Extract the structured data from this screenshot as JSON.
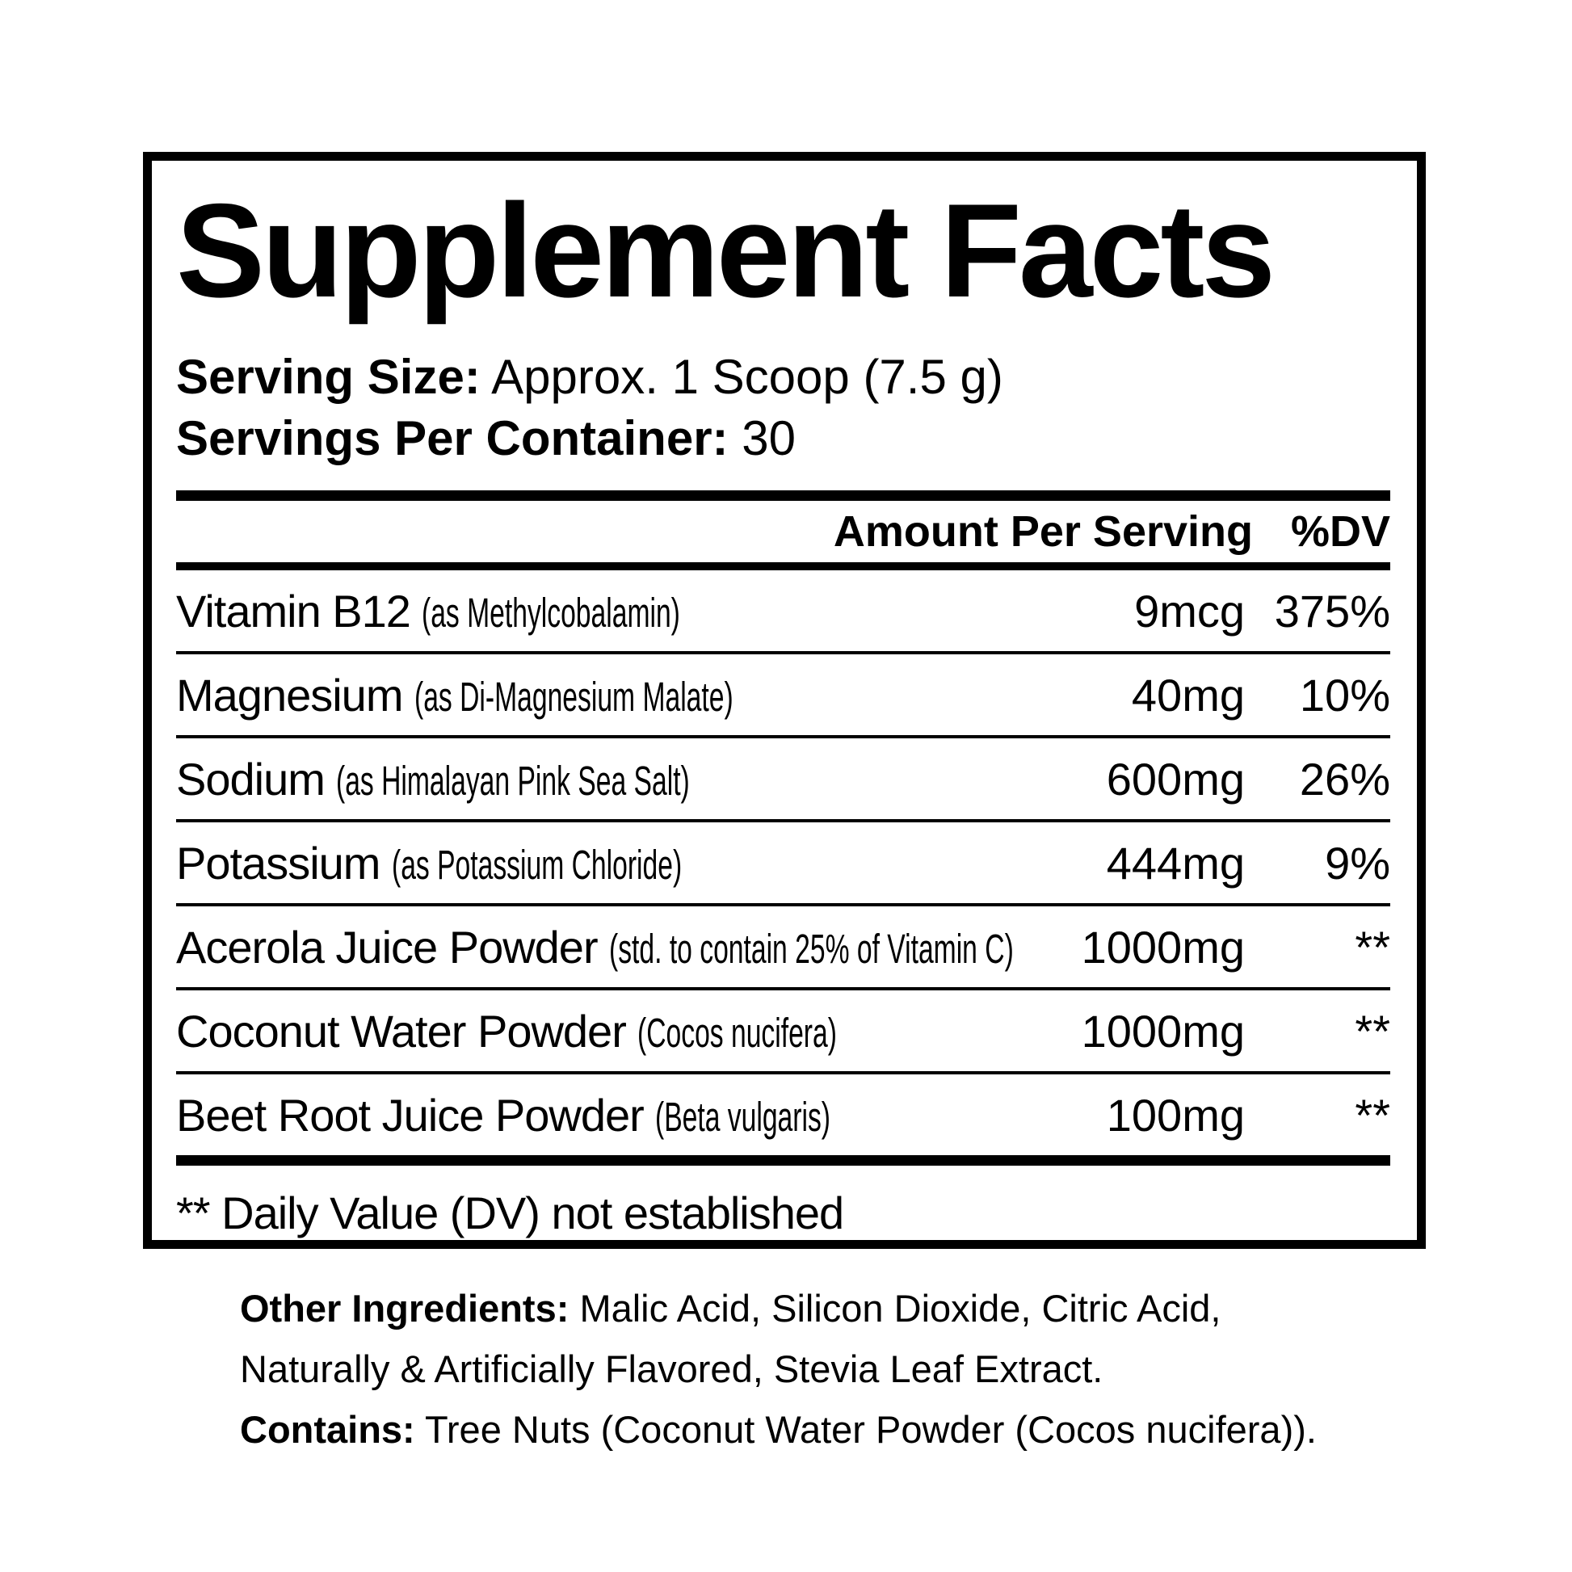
{
  "label": {
    "title": "Supplement Facts",
    "serving_size_label": "Serving Size:",
    "serving_size_value": "Approx. 1 Scoop (7.5 g)",
    "servings_per_container_label": "Servings Per Container:",
    "servings_per_container_value": "30",
    "col_amount_header": "Amount Per Serving",
    "col_dv_header": "%DV",
    "rows": [
      {
        "name": "Vitamin B12",
        "detail": "(as Methylcobalamin)",
        "amount": "9mcg",
        "dv": "375%"
      },
      {
        "name": "Magnesium",
        "detail": "(as Di-Magnesium Malate)",
        "amount": "40mg",
        "dv": "10%"
      },
      {
        "name": "Sodium",
        "detail": "(as Himalayan Pink Sea Salt)",
        "amount": "600mg",
        "dv": "26%"
      },
      {
        "name": "Potassium",
        "detail": "(as Potassium Chloride)",
        "amount": "444mg",
        "dv": "9%"
      },
      {
        "name": "Acerola Juice Powder",
        "detail": "(std. to contain 25% of Vitamin C)",
        "amount": "1000mg",
        "dv": "**"
      },
      {
        "name": "Coconut Water Powder",
        "detail": "(Cocos nucifera)",
        "amount": "1000mg",
        "dv": "**"
      },
      {
        "name": "Beet Root Juice Powder",
        "detail": "(Beta vulgaris)",
        "amount": "100mg",
        "dv": "**"
      }
    ],
    "footnote": "** Daily Value (DV) not established",
    "other_ingredients_label": "Other Ingredients:",
    "other_ingredients_value": "Malic Acid, Silicon Dioxide, Citric Acid, Naturally & Artificially Flavored, Stevia Leaf Extract.",
    "contains_label": "Contains:",
    "contains_value": "Tree Nuts (Coconut Water Powder (Cocos nucifera))."
  },
  "colors": {
    "ink": "#000000",
    "background": "#ffffff"
  }
}
